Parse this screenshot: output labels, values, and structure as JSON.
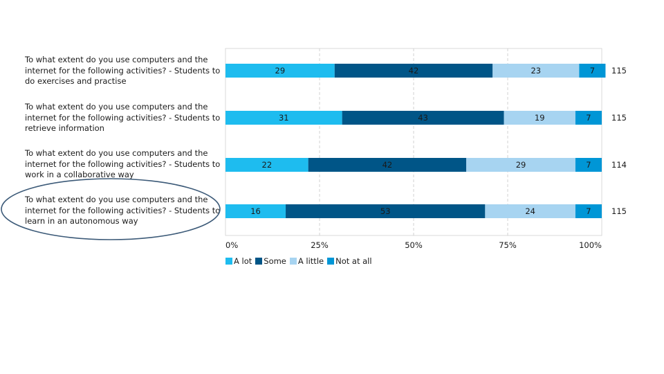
{
  "chart_data": {
    "type": "bar",
    "orientation": "horizontal",
    "stacked": "percent",
    "categories": [
      "To what extent do you use computers and the internet for the following activities? - Students to do exercises and practise",
      "To what extent do you use computers and the internet for the following activities? - Students to retrieve information",
      "To what extent do you use computers and the internet for the following activities? - Students to work in a collaborative way",
      "To what extent do you use computers and the internet for the following activities? - Students to learn in an autonomous way"
    ],
    "series": [
      {
        "name": "A lot",
        "color": "#1ebcef",
        "values": [
          29,
          31,
          22,
          16
        ]
      },
      {
        "name": "Some",
        "color": "#005587",
        "values": [
          42,
          43,
          42,
          53
        ]
      },
      {
        "name": "A little",
        "color": "#a7d4f1",
        "values": [
          23,
          19,
          29,
          24
        ]
      },
      {
        "name": "Not at all",
        "color": "#0096d6",
        "values": [
          7,
          7,
          7,
          7
        ]
      }
    ],
    "totals": [
      115,
      115,
      114,
      115
    ],
    "x_ticks": [
      "0%",
      "25%",
      "50%",
      "75%",
      "100%"
    ],
    "xlim": [
      0,
      100
    ],
    "grid": true,
    "legend_position": "bottom-left",
    "highlighted_category_index": 3,
    "highlight_color": "#3c5a78"
  }
}
